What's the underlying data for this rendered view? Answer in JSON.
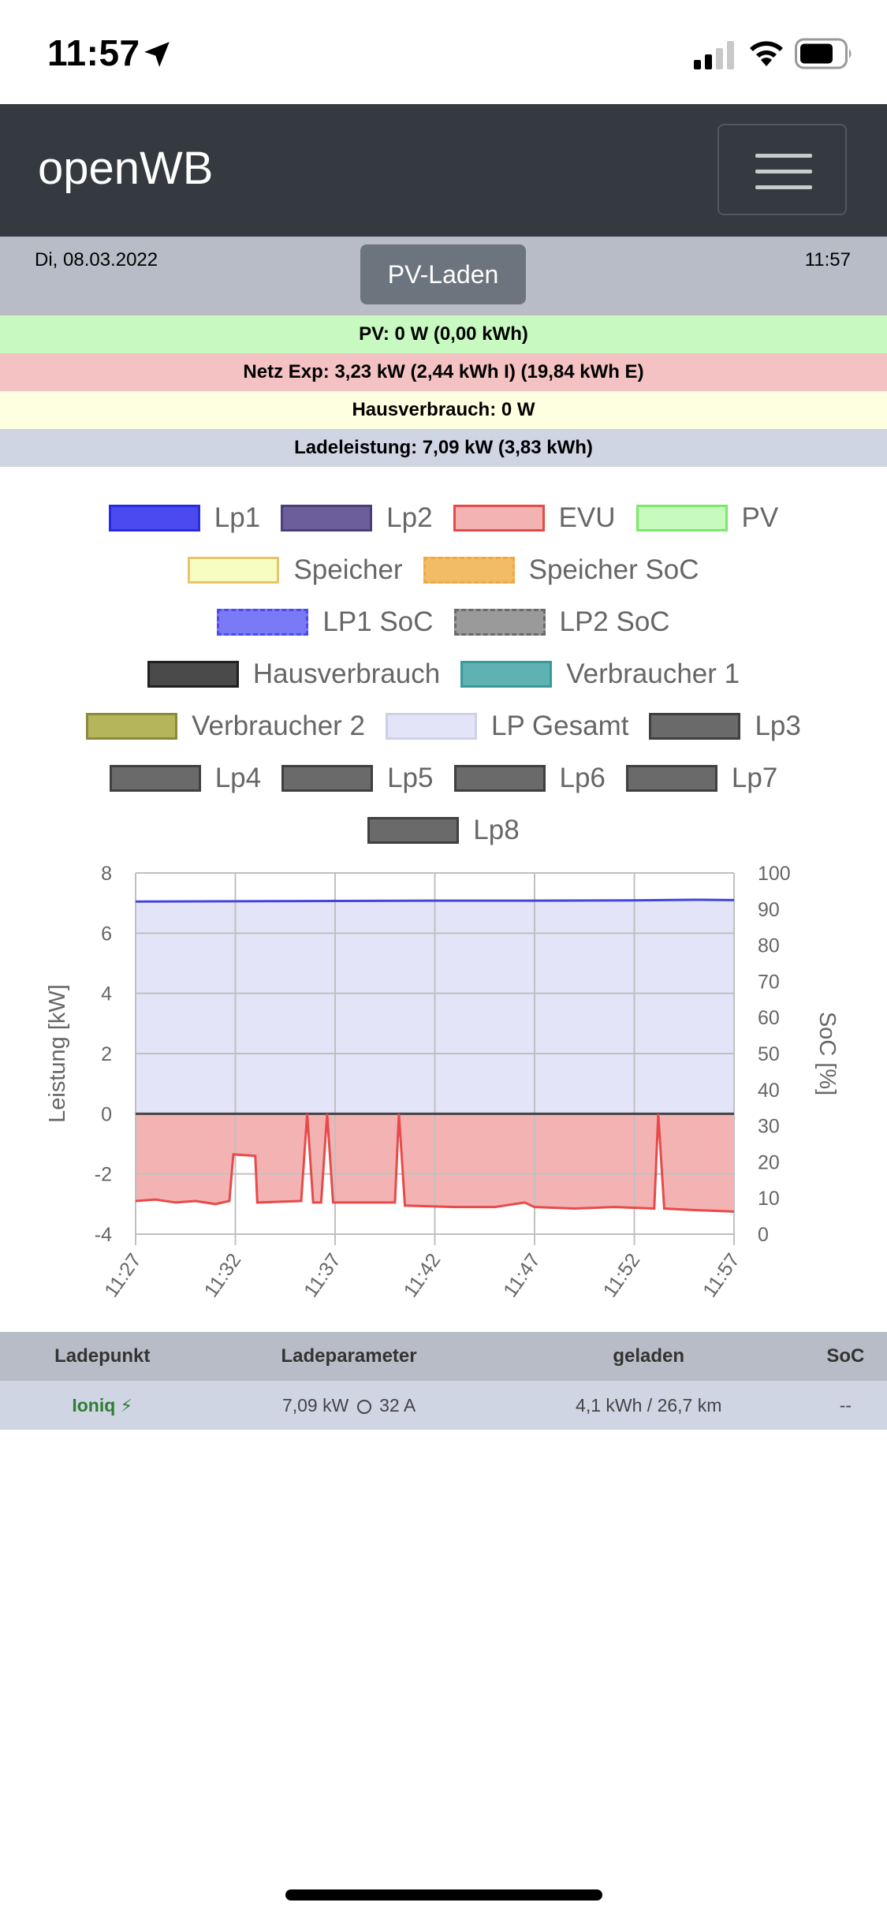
{
  "status_bar": {
    "time": "11:57",
    "icons": [
      "location-arrow-icon",
      "cellular-signal-icon",
      "wifi-icon",
      "battery-icon"
    ]
  },
  "navbar": {
    "brand": "openWB",
    "menu_icon": "hamburger-menu-icon"
  },
  "header": {
    "date": "Di, 08.03.2022",
    "time": "11:57",
    "mode_button": "PV-Laden"
  },
  "stats": {
    "pv": "PV: 0 W (0,00 kWh)",
    "netz": "Netz Exp: 3,23 kW (2,44 kWh I) (19,84 kWh E)",
    "haus": "Hausverbrauch: 0 W",
    "lade": "Ladeleistung: 7,09 kW (3,83 kWh)"
  },
  "legend": {
    "rows": [
      [
        {
          "label": "Lp1",
          "fill": "#4a4af0",
          "border": "#2a2ae0",
          "dashed": false
        },
        {
          "label": "Lp2",
          "fill": "#6b5e9a",
          "border": "#4b3e7a",
          "dashed": false
        },
        {
          "label": "EVU",
          "fill": "#f4b3b3",
          "border": "#e84a4a",
          "dashed": false
        },
        {
          "label": "PV",
          "fill": "#c6fbbd",
          "border": "#7ce86a",
          "dashed": false
        }
      ],
      [
        {
          "label": "Speicher",
          "fill": "#f7fcc0",
          "border": "#e8c56a",
          "dashed": false
        },
        {
          "label": "Speicher SoC",
          "fill": "#f2bb66",
          "border": "#f0a840",
          "dashed": true
        }
      ],
      [
        {
          "label": "LP1 SoC",
          "fill": "#7a7af6",
          "border": "#4a4af0",
          "dashed": true
        },
        {
          "label": "LP2 SoC",
          "fill": "#9a9a9a",
          "border": "#6a6a6a",
          "dashed": true
        }
      ],
      [
        {
          "label": "Hausverbrauch",
          "fill": "#4a4a4a",
          "border": "#202020",
          "dashed": false
        },
        {
          "label": "Verbraucher 1",
          "fill": "#5fb2b2",
          "border": "#3a9a9a",
          "dashed": false
        }
      ],
      [
        {
          "label": "Verbraucher 2",
          "fill": "#b5b55c",
          "border": "#8a8a3a",
          "dashed": false
        },
        {
          "label": "LP Gesamt",
          "fill": "#e4e4f8",
          "border": "#cfcfe8",
          "dashed": false
        },
        {
          "label": "Lp3",
          "fill": "#6a6a6a",
          "border": "#404040",
          "dashed": false
        }
      ],
      [
        {
          "label": "Lp4",
          "fill": "#6a6a6a",
          "border": "#404040",
          "dashed": false
        },
        {
          "label": "Lp5",
          "fill": "#6a6a6a",
          "border": "#404040",
          "dashed": false
        },
        {
          "label": "Lp6",
          "fill": "#6a6a6a",
          "border": "#404040",
          "dashed": false
        },
        {
          "label": "Lp7",
          "fill": "#6a6a6a",
          "border": "#404040",
          "dashed": false
        }
      ],
      [
        {
          "label": "Lp8",
          "fill": "#6a6a6a",
          "border": "#404040",
          "dashed": false
        }
      ]
    ]
  },
  "chart_data": {
    "type": "area",
    "xlabel": "",
    "ylabel": "Leistung [kW]",
    "y2label": "SoC [%]",
    "ylim": [
      -4,
      8
    ],
    "y2lim": [
      0,
      100
    ],
    "yticks": [
      8,
      6,
      4,
      2,
      0,
      -2,
      -4
    ],
    "y2ticks": [
      100,
      90,
      80,
      70,
      60,
      50,
      40,
      30,
      20,
      10,
      0
    ],
    "xticks": [
      "11:27",
      "11:32",
      "11:37",
      "11:42",
      "11:47",
      "11:52",
      "11:57"
    ],
    "xlim": [
      0,
      30
    ],
    "grid": true,
    "series": [
      {
        "name": "LP Gesamt",
        "fill": "#e4e4f8",
        "stroke": "#4444dd",
        "points": [
          [
            0,
            7.05
          ],
          [
            5,
            7.06
          ],
          [
            10,
            7.07
          ],
          [
            15,
            7.08
          ],
          [
            20,
            7.08
          ],
          [
            25,
            7.09
          ],
          [
            28,
            7.11
          ],
          [
            30,
            7.1
          ]
        ]
      },
      {
        "name": "EVU",
        "fill": "#f4b3b3",
        "stroke": "#e84a4a",
        "points": [
          [
            0,
            -2.9
          ],
          [
            1,
            -2.85
          ],
          [
            2,
            -2.95
          ],
          [
            3,
            -2.9
          ],
          [
            4,
            -3.0
          ],
          [
            4.7,
            -2.9
          ],
          [
            4.9,
            -1.35
          ],
          [
            6,
            -1.4
          ],
          [
            6.1,
            -2.95
          ],
          [
            8.3,
            -2.9
          ],
          [
            8.6,
            0
          ],
          [
            8.9,
            -2.95
          ],
          [
            9.3,
            -2.95
          ],
          [
            9.6,
            0
          ],
          [
            9.9,
            -2.95
          ],
          [
            13,
            -2.95
          ],
          [
            13.2,
            0
          ],
          [
            13.5,
            -3.05
          ],
          [
            16,
            -3.1
          ],
          [
            18,
            -3.1
          ],
          [
            19.5,
            -2.95
          ],
          [
            20,
            -3.1
          ],
          [
            22,
            -3.15
          ],
          [
            24,
            -3.1
          ],
          [
            26,
            -3.15
          ],
          [
            26.2,
            0
          ],
          [
            26.5,
            -3.15
          ],
          [
            28,
            -3.2
          ],
          [
            30,
            -3.25
          ]
        ]
      }
    ]
  },
  "table": {
    "headers": [
      "Ladepunkt",
      "Ladeparameter",
      "geladen",
      "SoC"
    ],
    "row": {
      "name": "Ioniq",
      "plug_icon": "plug-icon",
      "power": "7,09 kW",
      "current": "32 A",
      "charged": "4,1 kWh / 26,7 km",
      "soc": "--"
    }
  }
}
